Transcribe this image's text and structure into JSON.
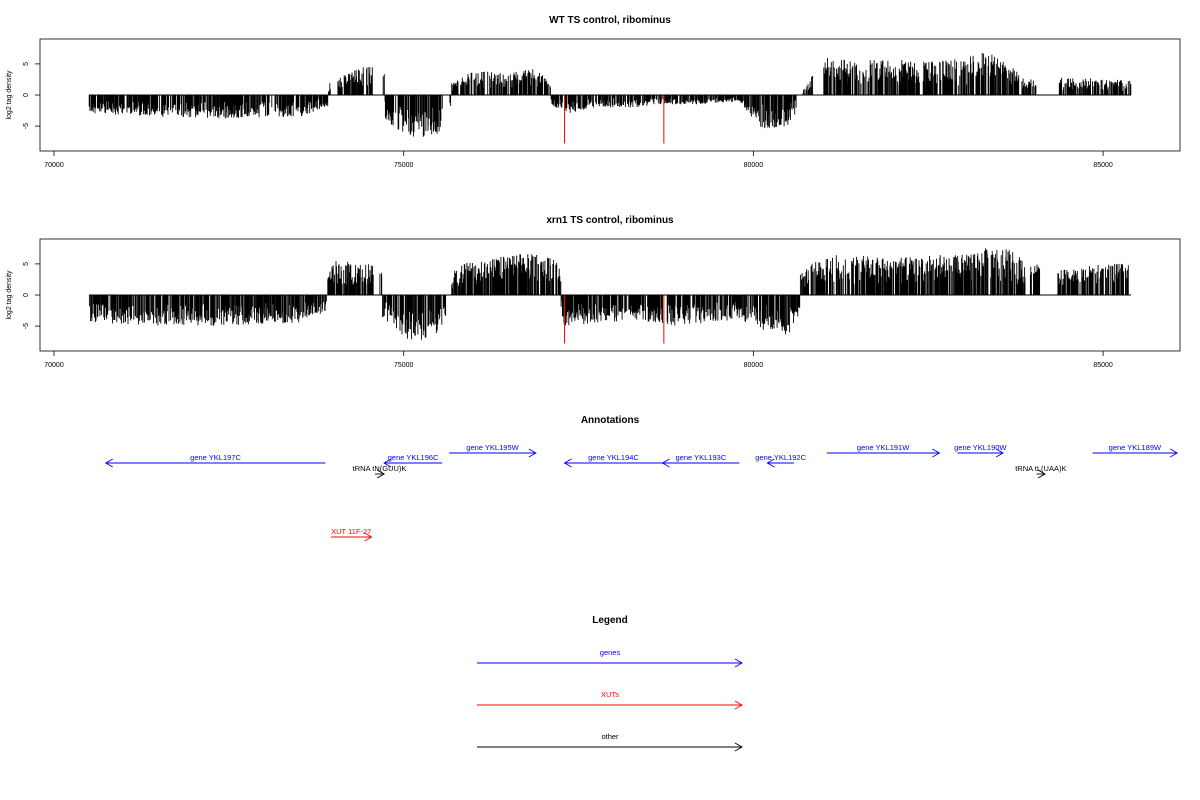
{
  "colors": {
    "gene": "#0000ff",
    "xut": "#ff0000",
    "other": "#000000",
    "bar": "#000000",
    "highlight": "#ff0000"
  },
  "chart_data": [
    {
      "type": "bar",
      "title": "WT TS control, ribominus",
      "ylabel": "log2 tag density",
      "xlim": [
        69800,
        86100
      ],
      "ylim": [
        -9,
        9
      ],
      "x_ticks": [
        70000,
        75000,
        80000,
        85000
      ],
      "y_ticks": [
        -5,
        0,
        5
      ],
      "x_range": [
        70500,
        85400
      ],
      "gaps": [
        [
          73950,
          74050
        ],
        [
          74560,
          74700
        ],
        [
          75550,
          75650
        ],
        [
          77270,
          77300
        ],
        [
          80620,
          80690
        ],
        [
          80850,
          81000
        ],
        [
          82380,
          82420
        ],
        [
          83800,
          83830
        ],
        [
          84050,
          84350
        ]
      ],
      "envelope": [
        [
          70500,
          1.0,
          -3.0
        ],
        [
          71500,
          1.0,
          -3.5
        ],
        [
          72500,
          1.3,
          -3.8
        ],
        [
          73500,
          1.3,
          -3.5
        ],
        [
          73900,
          1.8,
          -2.0
        ],
        [
          74000,
          2.5,
          -1.0
        ],
        [
          74600,
          5.5,
          -2.0
        ],
        [
          74900,
          1.0,
          -6.0
        ],
        [
          75200,
          0.5,
          -7.0
        ],
        [
          75500,
          0.5,
          -6.5
        ],
        [
          75700,
          2.0,
          -1.0
        ],
        [
          76000,
          4.0,
          -0.5
        ],
        [
          76500,
          3.5,
          -0.5
        ],
        [
          76900,
          4.5,
          -0.5
        ],
        [
          77100,
          1.5,
          -1.5
        ],
        [
          77300,
          1.0,
          -3.0
        ],
        [
          77800,
          0.8,
          -2.0
        ],
        [
          78300,
          0.8,
          -2.0
        ],
        [
          78700,
          1.0,
          -1.5
        ],
        [
          79200,
          1.0,
          -1.5
        ],
        [
          79800,
          1.0,
          -1.0
        ],
        [
          80100,
          1.0,
          -5.5
        ],
        [
          80500,
          0.5,
          -5.0
        ],
        [
          80700,
          1.0,
          -1.0
        ],
        [
          81000,
          6.0,
          -0.5
        ],
        [
          81500,
          5.5,
          -0.3
        ],
        [
          82000,
          5.8,
          -0.3
        ],
        [
          82500,
          5.5,
          -0.3
        ],
        [
          83000,
          5.8,
          -0.3
        ],
        [
          83300,
          7.0,
          -0.3
        ],
        [
          83600,
          5.5,
          -0.3
        ],
        [
          83900,
          2.5,
          -0.3
        ],
        [
          84400,
          3.0,
          -0.3
        ],
        [
          85000,
          2.5,
          -0.3
        ],
        [
          85400,
          2.5,
          -0.3
        ]
      ],
      "red_lines": [
        [
          77300,
          -7.8
        ],
        [
          78720,
          -7.8
        ]
      ]
    },
    {
      "type": "bar",
      "title": "xrn1 TS control, ribominus",
      "ylabel": "log2 tag density",
      "xlim": [
        69800,
        86100
      ],
      "ylim": [
        -9,
        9
      ],
      "x_ticks": [
        70000,
        75000,
        80000,
        85000
      ],
      "y_ticks": [
        -5,
        0,
        5
      ],
      "x_range": [
        70500,
        85400
      ],
      "gaps": [
        [
          74560,
          74650
        ],
        [
          75600,
          75680
        ],
        [
          78700,
          78760
        ],
        [
          83900,
          83950
        ],
        [
          84100,
          84350
        ]
      ],
      "envelope": [
        [
          70500,
          1.0,
          -4.5
        ],
        [
          71500,
          1.0,
          -5.0
        ],
        [
          72500,
          1.0,
          -5.0
        ],
        [
          73500,
          2.0,
          -4.5
        ],
        [
          73900,
          2.5,
          -2.5
        ],
        [
          74000,
          5.5,
          -1.5
        ],
        [
          74600,
          5.0,
          -2.5
        ],
        [
          74900,
          0.5,
          -6.5
        ],
        [
          75200,
          0.5,
          -7.5
        ],
        [
          75500,
          0.5,
          -6.0
        ],
        [
          75800,
          5.0,
          -0.5
        ],
        [
          76300,
          6.0,
          -0.5
        ],
        [
          76900,
          7.0,
          -0.5
        ],
        [
          77200,
          5.5,
          -1.5
        ],
        [
          77300,
          1.0,
          -5.0
        ],
        [
          77800,
          1.0,
          -4.5
        ],
        [
          78300,
          1.0,
          -4.0
        ],
        [
          78800,
          1.0,
          -5.0
        ],
        [
          79300,
          1.0,
          -4.5
        ],
        [
          79800,
          1.0,
          -4.0
        ],
        [
          80100,
          3.0,
          -5.5
        ],
        [
          80500,
          1.0,
          -6.5
        ],
        [
          80800,
          5.0,
          -0.5
        ],
        [
          81200,
          6.5,
          -0.3
        ],
        [
          82000,
          6.0,
          -0.3
        ],
        [
          82600,
          6.5,
          -0.3
        ],
        [
          83100,
          6.5,
          -0.3
        ],
        [
          83500,
          8.5,
          -0.3
        ],
        [
          83900,
          5.5,
          -0.3
        ],
        [
          84400,
          4.0,
          -0.3
        ],
        [
          85000,
          5.0,
          -0.3
        ],
        [
          85400,
          5.0,
          -0.3
        ]
      ],
      "red_lines": [
        [
          77300,
          -7.8
        ],
        [
          78720,
          -7.8
        ]
      ]
    }
  ],
  "annotations": {
    "title": "Annotations",
    "items": [
      {
        "label": "gene YKL197C",
        "type": "gene",
        "start": 70740,
        "end": 73880,
        "dir": "left",
        "row": 2
      },
      {
        "label": "tRNA tN(GUU)K",
        "type": "other",
        "start": 74590,
        "end": 74720,
        "dir": "right",
        "row": 3
      },
      {
        "label": "gene YKL196C",
        "type": "gene",
        "start": 74720,
        "end": 75550,
        "dir": "left",
        "row": 2
      },
      {
        "label": "gene YKL195W",
        "type": "gene",
        "start": 75650,
        "end": 76890,
        "dir": "right",
        "row": 1
      },
      {
        "label": "gene YKL194C",
        "type": "gene",
        "start": 77300,
        "end": 78700,
        "dir": "left",
        "row": 2
      },
      {
        "label": "gene YKL193C",
        "type": "gene",
        "start": 78700,
        "end": 79800,
        "dir": "left",
        "row": 2
      },
      {
        "label": "gene YKL192C",
        "type": "gene",
        "start": 80200,
        "end": 80580,
        "dir": "left",
        "row": 2
      },
      {
        "label": "gene YKL191W",
        "type": "gene",
        "start": 81050,
        "end": 82660,
        "dir": "right",
        "row": 1
      },
      {
        "label": "gene YKL190W",
        "type": "gene",
        "start": 82920,
        "end": 83570,
        "dir": "right",
        "row": 1
      },
      {
        "label": "tRNA tL(UAA)K",
        "type": "other",
        "start": 84050,
        "end": 84170,
        "dir": "right",
        "row": 3
      },
      {
        "label": "gene YKL189W",
        "type": "gene",
        "start": 84850,
        "end": 86060,
        "dir": "right",
        "row": 1
      },
      {
        "label": "XUT 11F-27",
        "type": "xut",
        "start": 73960,
        "end": 74540,
        "dir": "right",
        "row": 4
      }
    ]
  },
  "legend": {
    "title": "Legend",
    "items": [
      {
        "label": "genes",
        "type": "gene"
      },
      {
        "label": "XUTs",
        "type": "xut"
      },
      {
        "label": "other",
        "type": "other"
      }
    ]
  }
}
